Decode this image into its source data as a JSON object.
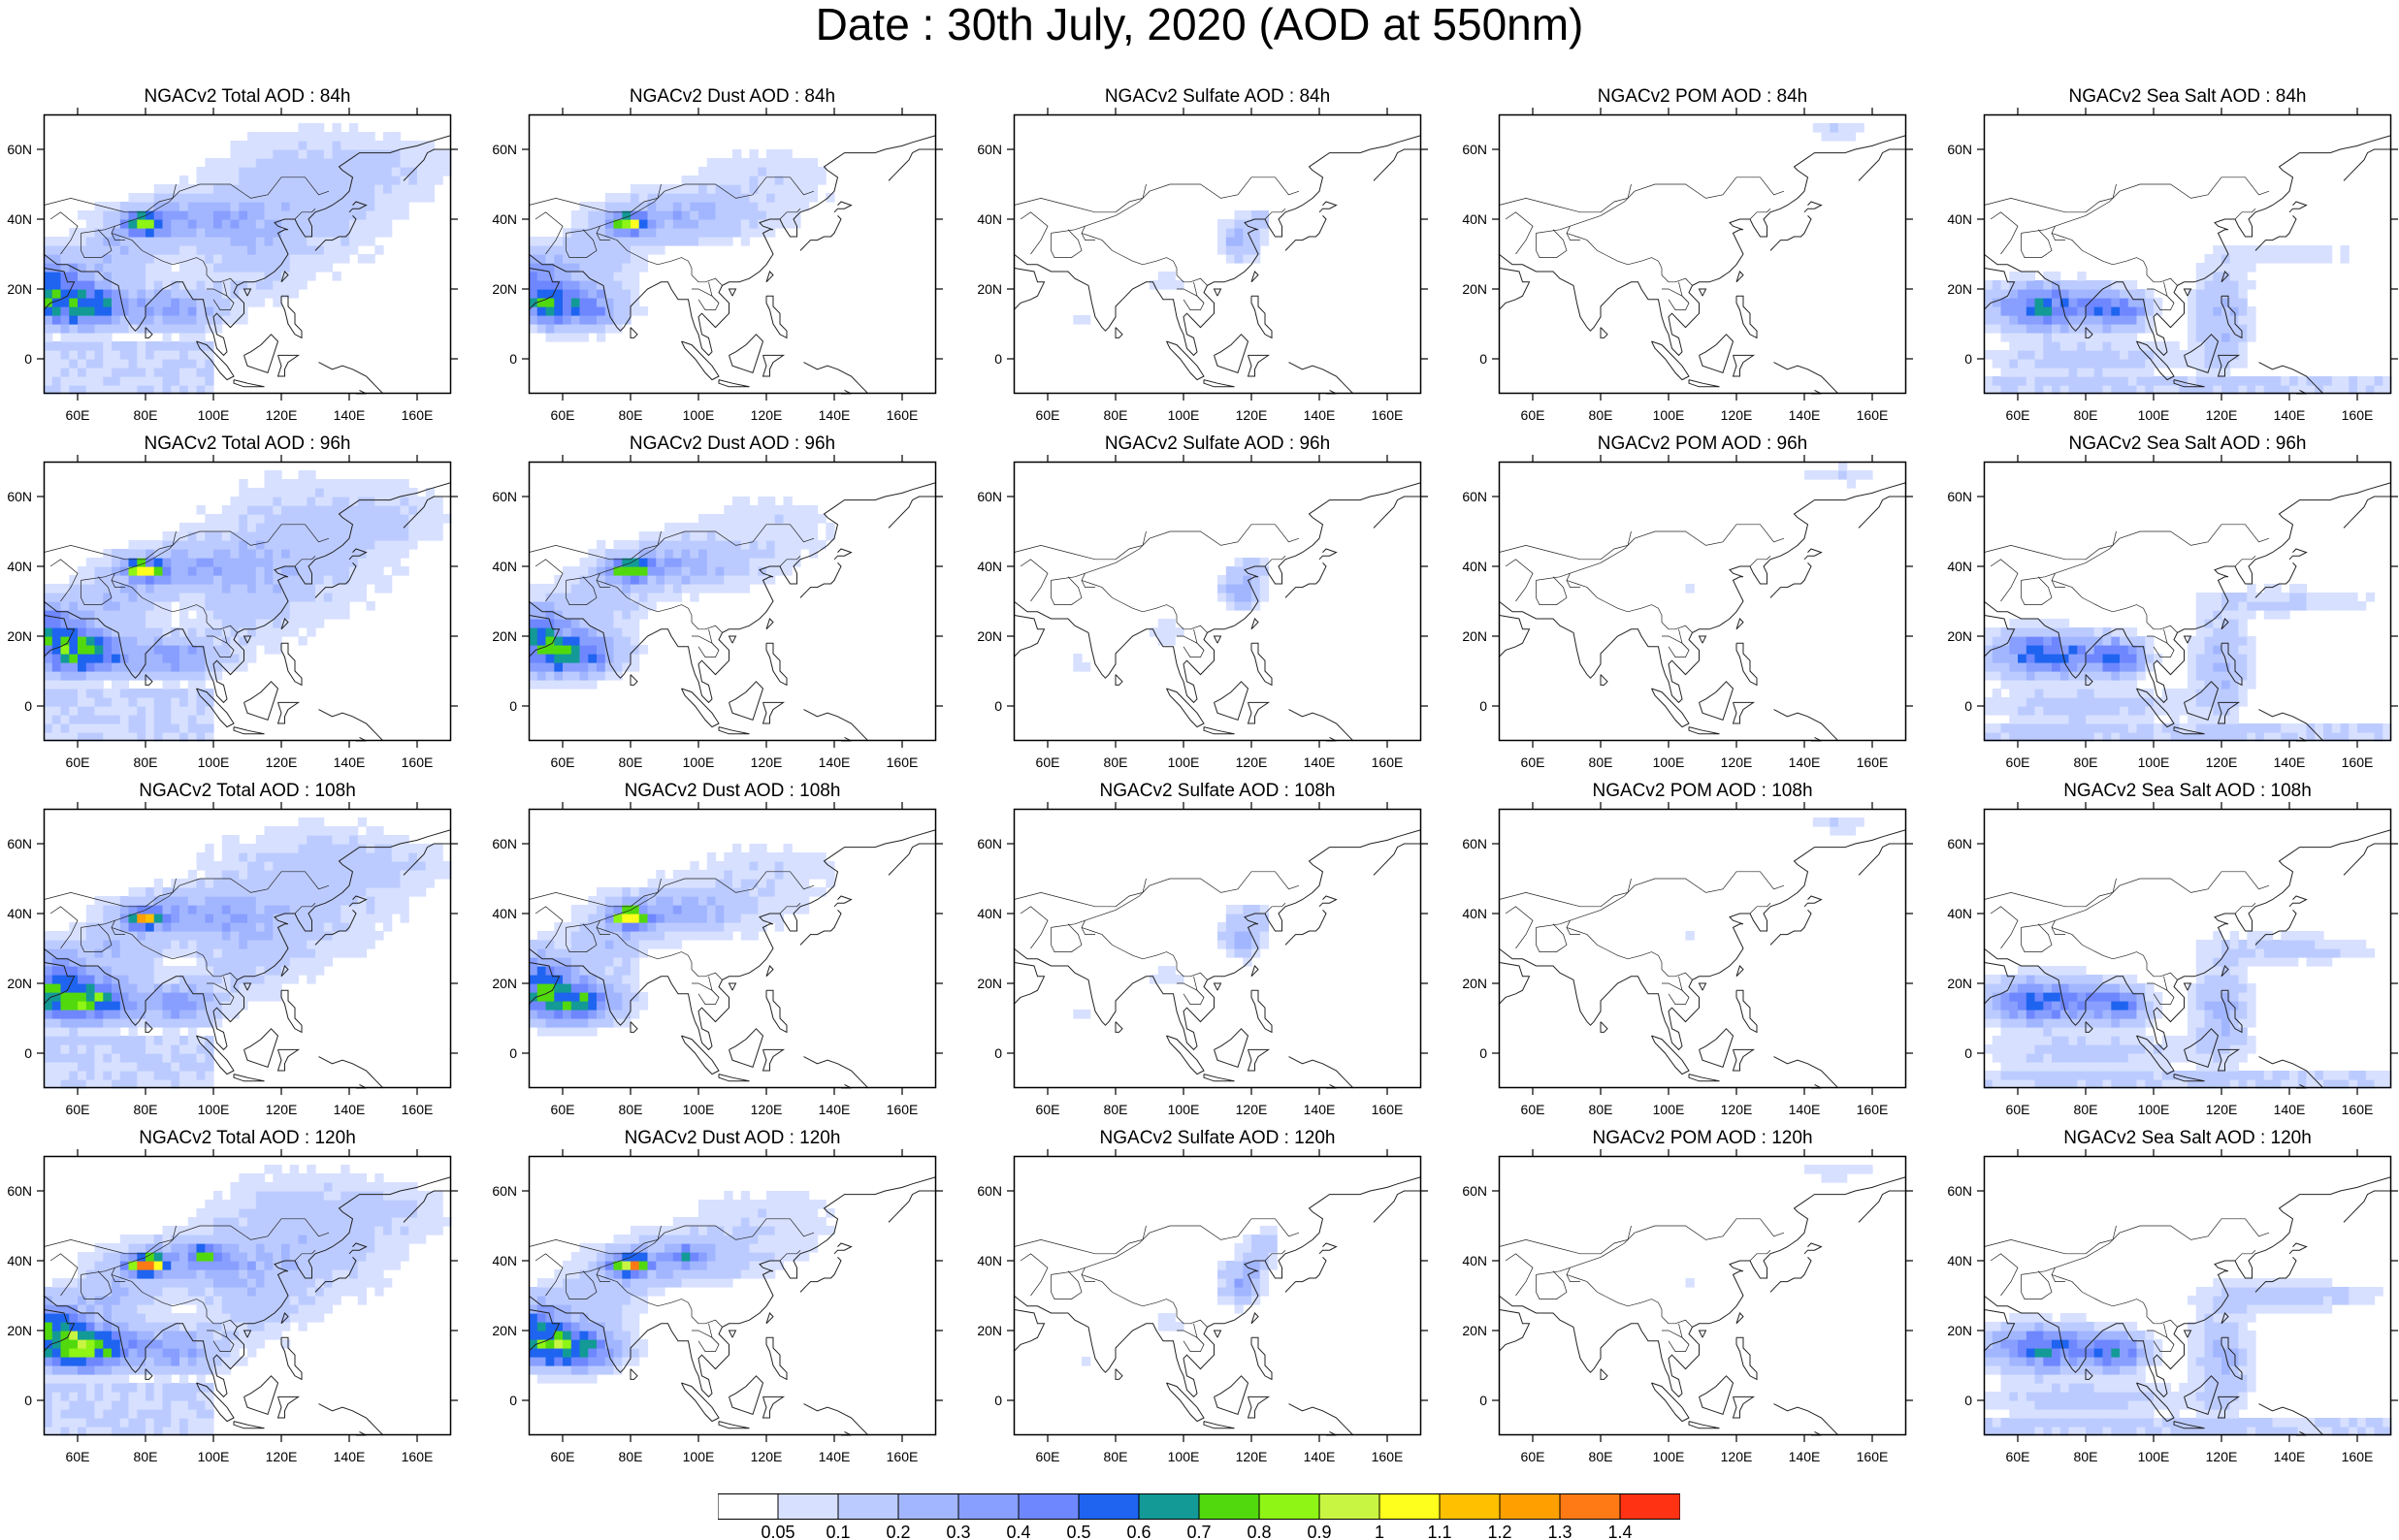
{
  "title": "Date : 30th July, 2020 (AOD at 550nm)",
  "row_labels": [
    "84h",
    "96h",
    "108h",
    "120h"
  ],
  "panels": [
    [
      "NGACv2 Total AOD : 84h",
      "NGACv2 Dust AOD : 84h",
      "NGACv2 Sulfate AOD : 84h",
      "NGACv2 POM AOD : 84h",
      "NGACv2 Sea Salt AOD : 84h"
    ],
    [
      "NGACv2 Total AOD : 96h",
      "NGACv2 Dust AOD : 96h",
      "NGACv2 Sulfate AOD : 96h",
      "NGACv2 POM AOD : 96h",
      "NGACv2 Sea Salt AOD : 96h"
    ],
    [
      "NGACv2 Total AOD : 108h",
      "NGACv2 Dust AOD : 108h",
      "NGACv2 Sulfate AOD : 108h",
      "NGACv2 POM AOD : 108h",
      "NGACv2 Sea Salt AOD : 108h"
    ],
    [
      "NGACv2 Total AOD : 120h",
      "NGACv2 Dust AOD : 120h",
      "NGACv2 Sulfate AOD : 120h",
      "NGACv2 POM AOD : 120h",
      "NGACv2 Sea Salt  AOD : 120h"
    ]
  ],
  "species": [
    "total",
    "dust",
    "sulfate",
    "pom",
    "seasalt"
  ],
  "map": {
    "lon_range": [
      50,
      170
    ],
    "lat_range": [
      -10,
      70
    ],
    "lon_ticks": [
      60,
      80,
      100,
      120,
      140,
      160
    ],
    "lon_tick_labels": [
      "60E",
      "80E",
      "100E",
      "120E",
      "140E",
      "160E"
    ],
    "lat_ticks": [
      0,
      20,
      40,
      60
    ],
    "lat_tick_labels": [
      "0",
      "20N",
      "40N",
      "60N"
    ]
  },
  "colorbar": {
    "levels": [
      "0.05",
      "0.1",
      "0.2",
      "0.3",
      "0.4",
      "0.5",
      "0.6",
      "0.7",
      "0.8",
      "0.9",
      "1",
      "1.1",
      "1.2",
      "1.3",
      "1.4"
    ],
    "colors": [
      "#ffffff",
      "#d7e0ff",
      "#bccbff",
      "#a2b6ff",
      "#889fff",
      "#6e87ff",
      "#1e64f0",
      "#139a96",
      "#52d90e",
      "#8ef514",
      "#c8f542",
      "#ffff1e",
      "#ffc000",
      "#ffa000",
      "#ff7a14",
      "#ff3214"
    ]
  },
  "colors": {
    "land_fill": "#ffffff",
    "coastline": "#222222"
  }
}
